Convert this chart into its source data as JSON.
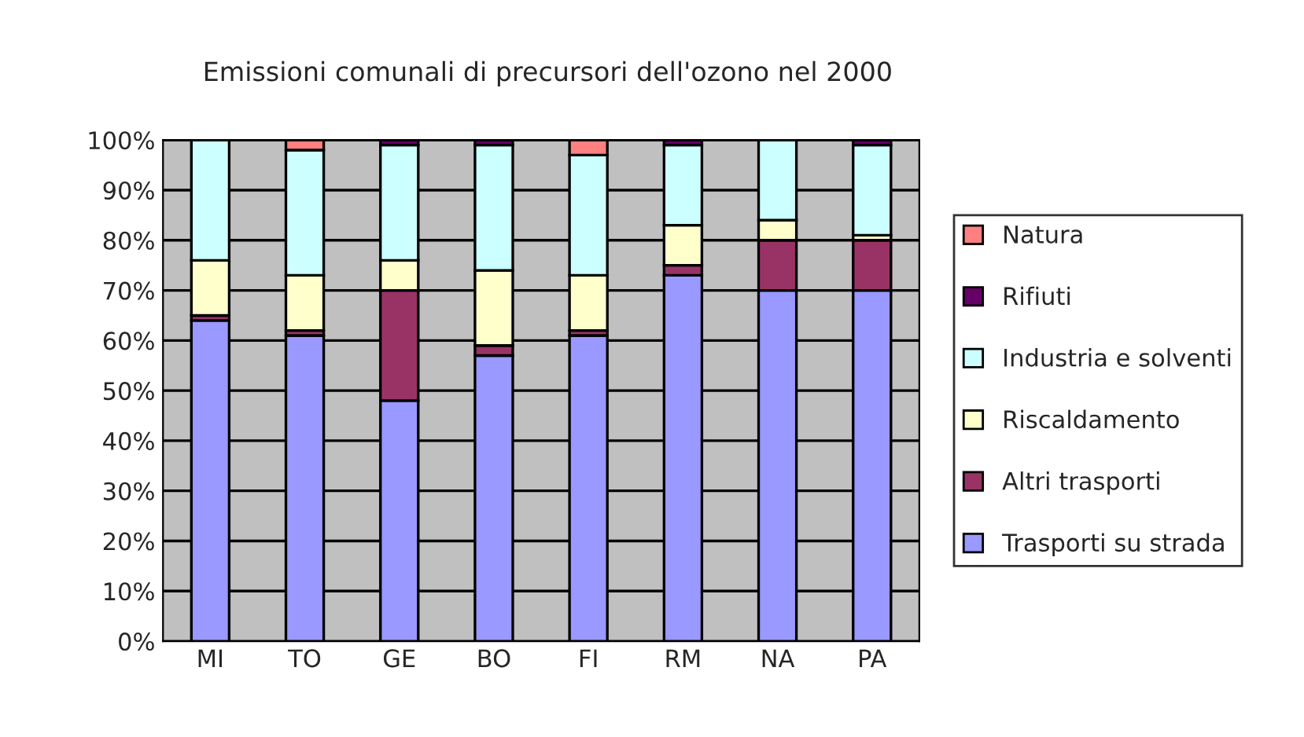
{
  "chart_data": {
    "type": "bar",
    "title": "Emissioni comunali di precursori dell'ozono nel 2000",
    "categories": [
      "MI",
      "TO",
      "GE",
      "BO",
      "FI",
      "RM",
      "NA",
      "PA"
    ],
    "stacked": true,
    "series": [
      {
        "name": "Trasporti su strada",
        "color": "#9999ff",
        "values": [
          64,
          61,
          48,
          57,
          61,
          73,
          70,
          70
        ]
      },
      {
        "name": "Altri trasporti",
        "color": "#993366",
        "values": [
          1,
          1,
          22,
          2,
          1,
          2,
          10,
          10
        ]
      },
      {
        "name": "Riscaldamento",
        "color": "#ffffcc",
        "values": [
          11,
          11,
          6,
          15,
          11,
          8,
          4,
          1
        ]
      },
      {
        "name": "Industria e solventi",
        "color": "#ccffff",
        "values": [
          24,
          25,
          23,
          25,
          24,
          16,
          16,
          18
        ]
      },
      {
        "name": "Rifiuti",
        "color": "#660066",
        "values": [
          null,
          null,
          1,
          1,
          null,
          1,
          null,
          1
        ]
      },
      {
        "name": "Natura",
        "color": "#ff8080",
        "values": [
          null,
          2,
          null,
          null,
          3,
          null,
          null,
          null
        ]
      }
    ],
    "ylim": [
      0,
      100
    ],
    "yticks": [
      {
        "value": 0,
        "label": "0%"
      },
      {
        "value": 10,
        "label": "10%"
      },
      {
        "value": 20,
        "label": "20%"
      },
      {
        "value": 30,
        "label": "30%"
      },
      {
        "value": 40,
        "label": "40%"
      },
      {
        "value": 50,
        "label": "50%"
      },
      {
        "value": 60,
        "label": "60%"
      },
      {
        "value": 70,
        "label": "70%"
      },
      {
        "value": 80,
        "label": "80%"
      },
      {
        "value": 90,
        "label": "90%"
      },
      {
        "value": 100,
        "label": "100%"
      }
    ],
    "grid": "y",
    "legend": "right"
  }
}
